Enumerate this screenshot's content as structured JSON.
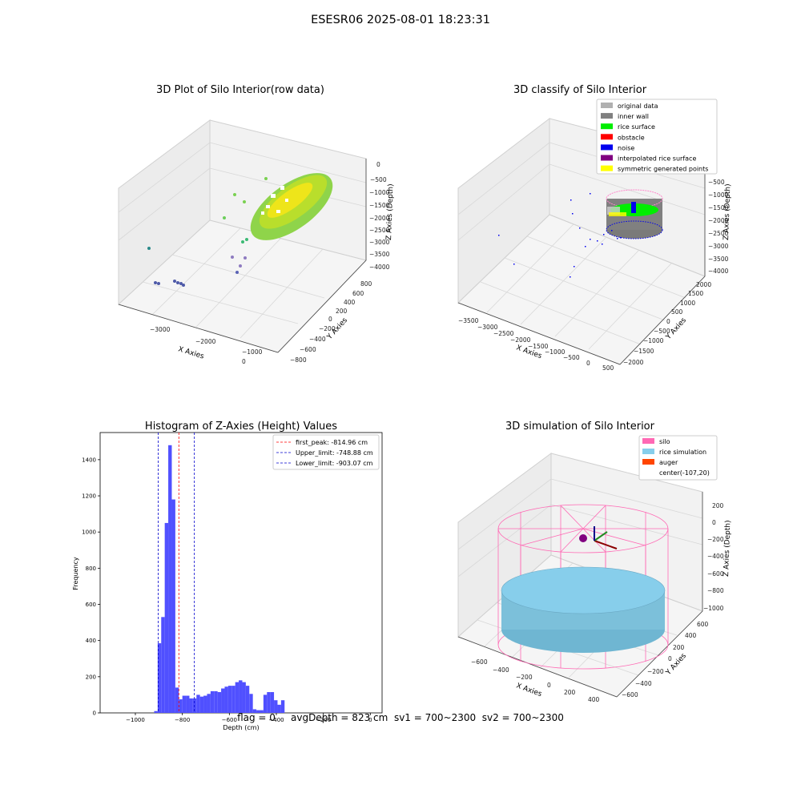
{
  "suptitle": "ESESR06 2025-08-01 18:23:31",
  "footer": "flag = 0     avgDepth = 823 cm  sv1 = 700~2300  sv2 = 700~2300",
  "chart_data": [
    {
      "type": "scatter",
      "title": "3D Plot of Silo Interior(row data)",
      "xlabel": "X Axies",
      "ylabel": "Y Axies",
      "zlabel": "Z Axies (Depth)",
      "x_ticks": [
        "−3000",
        "−2000",
        "−1000",
        "0"
      ],
      "y_ticks": [
        "−800",
        "−600",
        "−400",
        "−200",
        "0",
        "200",
        "400",
        "600",
        "800"
      ],
      "z_ticks": [
        "0",
        "−500",
        "−1000",
        "−1500",
        "−2000",
        "−2500",
        "−3000",
        "−3500",
        "−4000"
      ],
      "colormap": "viridis"
    },
    {
      "type": "scatter",
      "title": "3D classify of Silo Interior",
      "xlabel": "X Axies",
      "ylabel": "Y Axies",
      "zlabel": "Z Axies (Depth)",
      "x_ticks": [
        "−3500",
        "−3000",
        "−2500",
        "−2000",
        "−1500",
        "−1000",
        "−500",
        "0",
        "500"
      ],
      "y_ticks": [
        "−2000",
        "−1500",
        "−1000",
        "−500",
        "0",
        "500",
        "1000",
        "1500",
        "2000"
      ],
      "z_ticks": [
        "−500",
        "−1000",
        "−1500",
        "−2000",
        "−2500",
        "−3000",
        "−3500",
        "−4000"
      ],
      "legend": [
        {
          "label": "original data",
          "color": "#b0b0b0"
        },
        {
          "label": "inner wall",
          "color": "#808080"
        },
        {
          "label": "rice surface",
          "color": "#00ee00"
        },
        {
          "label": "obstacle",
          "color": "#ff0000"
        },
        {
          "label": "noise",
          "color": "#0000ee"
        },
        {
          "label": "interpolated rice surface",
          "color": "#800080"
        },
        {
          "label": "symmetric generated points",
          "color": "#ffff00"
        }
      ],
      "legend_position": "top-right"
    },
    {
      "type": "bar",
      "title": "Histogram of Z-Axies (Height) Values",
      "xlabel": "Depth (cm)",
      "ylabel": "Frequency",
      "xlim": [
        -1150,
        50
      ],
      "ylim": [
        0,
        1550
      ],
      "x_ticks": [
        -1000,
        -800,
        -600,
        -400,
        -200,
        0
      ],
      "y_ticks": [
        0,
        200,
        400,
        600,
        800,
        1000,
        1200,
        1400
      ],
      "bin_start": -920,
      "bin_width": 15,
      "values": [
        10,
        385,
        530,
        1050,
        1480,
        1180,
        140,
        75,
        95,
        95,
        80,
        80,
        100,
        90,
        95,
        105,
        120,
        120,
        115,
        135,
        145,
        150,
        150,
        170,
        180,
        170,
        150,
        105,
        20,
        15,
        15,
        100,
        115,
        115,
        70,
        45,
        70
      ],
      "bar_color": "#5050ff",
      "vlines": [
        {
          "label": "first_peak: -814.96 cm",
          "x": -814.96,
          "color": "#ff0000"
        },
        {
          "label": "Upper_limit: -748.88 cm",
          "x": -748.88,
          "color": "#0000cc"
        },
        {
          "label": "Lower_limit: -903.07 cm",
          "x": -903.07,
          "color": "#0000cc"
        }
      ],
      "legend_position": "top-right"
    },
    {
      "type": "surface",
      "title": "3D simulation of Silo Interior",
      "xlabel": "X Axies",
      "ylabel": "Y Axies",
      "zlabel": "Z Axies (Depth)",
      "x_ticks": [
        "−600",
        "−400",
        "−200",
        "0",
        "200",
        "400"
      ],
      "y_ticks": [
        "−600",
        "−400",
        "−200",
        "0",
        "200",
        "400",
        "600"
      ],
      "z_ticks": [
        "200",
        "0",
        "−200",
        "−400",
        "−600",
        "−800",
        "−1000"
      ],
      "legend": [
        {
          "label": "silo",
          "color": "#ff69b4"
        },
        {
          "label": "rice simulation",
          "color": "#87ceeb"
        },
        {
          "label": "auger",
          "color": "#ff4500"
        },
        {
          "label": "center(-107,20)",
          "color": ""
        }
      ],
      "legend_position": "top-right"
    }
  ]
}
